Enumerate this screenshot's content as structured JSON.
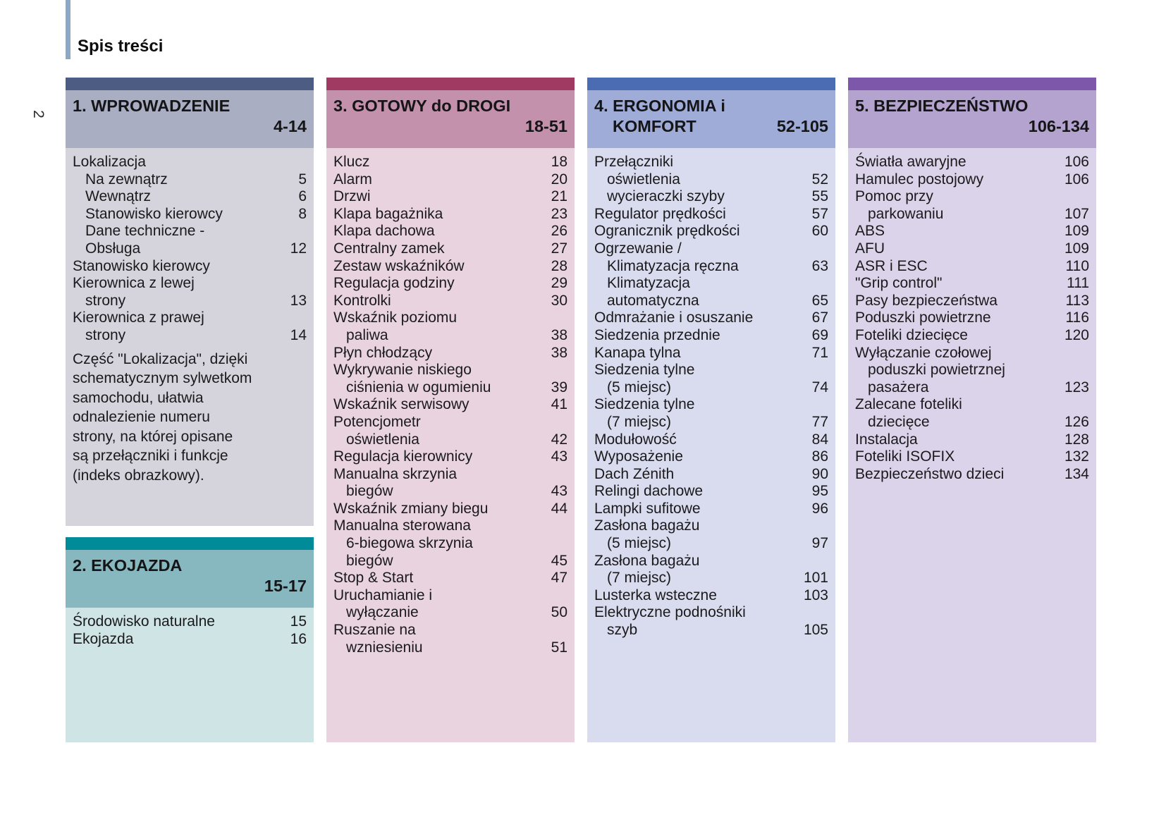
{
  "page_number": "2",
  "title": "Spis treści",
  "accent_bar_color": "#8da8c7",
  "columns": [
    {
      "id": "wprowadzenie",
      "header": {
        "line1": "1. WPROWADZENIE",
        "line2": "",
        "range": "4-14"
      },
      "colors": {
        "bar": "#4d5c82",
        "header": "#a9aec2",
        "content": "#d5d4dd"
      },
      "items": [
        {
          "label": "Lokalizacja"
        },
        {
          "label": "Na zewnątrz",
          "page": "5",
          "indent": 1
        },
        {
          "label": "Wewnątrz",
          "page": "6",
          "indent": 1
        },
        {
          "label": "Stanowisko kierowcy",
          "page": "8",
          "indent": 1
        },
        {
          "label": "Dane techniczne -",
          "indent": 1
        },
        {
          "label": "Obsługa",
          "page": "12",
          "indent": 1
        },
        {
          "label": "Stanowisko kierowcy"
        },
        {
          "label": "Kierownica z lewej"
        },
        {
          "label": "strony",
          "page": "13",
          "indent": 1
        },
        {
          "label": "Kierownica z prawej"
        },
        {
          "label": "strony",
          "page": "14",
          "indent": 1
        }
      ],
      "note": [
        "Część \"Lokalizacja\", dzięki",
        "schematycznym sylwetkom",
        "samochodu, ułatwia",
        "odnalezienie numeru",
        "strony, na której opisane",
        "są przełączniki i funkcje",
        "(indeks obrazkowy)."
      ]
    },
    {
      "id": "ekojazda",
      "header": {
        "line1": "2. EKOJAZDA",
        "line2": "",
        "range": "15-17"
      },
      "colors": {
        "bar": "#008b99",
        "header": "#87b7bf",
        "content": "#cfe4e5"
      },
      "items": [
        {
          "label": "Środowisko naturalne",
          "page": "15"
        },
        {
          "label": "Ekojazda",
          "page": "16"
        }
      ]
    },
    {
      "id": "gotowy",
      "header": {
        "line1": "3. GOTOWY do DROGI",
        "line2": "",
        "range": "18-51"
      },
      "colors": {
        "bar": "#a03a63",
        "header": "#c391ac",
        "content": "#e9d3df"
      },
      "items": [
        {
          "label": "Klucz",
          "page": "18"
        },
        {
          "label": "Alarm",
          "page": "20"
        },
        {
          "label": "Drzwi",
          "page": "21"
        },
        {
          "label": "Klapa bagażnika",
          "page": "23"
        },
        {
          "label": "Klapa dachowa",
          "page": "26"
        },
        {
          "label": "Centralny zamek",
          "page": "27"
        },
        {
          "label": "Zestaw wskaźników",
          "page": "28"
        },
        {
          "label": "Regulacja godziny",
          "page": "29"
        },
        {
          "label": "Kontrolki",
          "page": "30"
        },
        {
          "label": "Wskaźnik poziomu"
        },
        {
          "label": "paliwa",
          "page": "38",
          "indent": 1
        },
        {
          "label": "Płyn chłodzący",
          "page": "38"
        },
        {
          "label": "Wykrywanie niskiego"
        },
        {
          "label": "ciśnienia w ogumieniu",
          "page": "39",
          "indent": 1
        },
        {
          "label": "Wskaźnik serwisowy",
          "page": "41"
        },
        {
          "label": "Potencjometr"
        },
        {
          "label": "oświetlenia",
          "page": "42",
          "indent": 1
        },
        {
          "label": "Regulacja kierownicy",
          "page": "43"
        },
        {
          "label": "Manualna skrzynia"
        },
        {
          "label": "biegów",
          "page": "43",
          "indent": 1
        },
        {
          "label": "Wskaźnik zmiany biegu",
          "page": "44"
        },
        {
          "label": "Manualna sterowana"
        },
        {
          "label": "6-biegowa skrzynia",
          "indent": 1
        },
        {
          "label": "biegów",
          "page": "45",
          "indent": 1
        },
        {
          "label": "Stop & Start",
          "page": "47"
        },
        {
          "label": "Uruchamianie i"
        },
        {
          "label": "wyłączanie",
          "page": "50",
          "indent": 1
        },
        {
          "label": "Ruszanie na"
        },
        {
          "label": "wzniesieniu",
          "page": "51",
          "indent": 1
        }
      ]
    },
    {
      "id": "ergonomia",
      "header": {
        "line1": "4. ERGONOMIA i",
        "line2": "KOMFORT",
        "range": "52-105"
      },
      "colors": {
        "bar": "#4b6cb2",
        "header": "#9eacd7",
        "content": "#d9dcee"
      },
      "items": [
        {
          "label": "Przełączniki"
        },
        {
          "label": "oświetlenia",
          "page": "52",
          "indent": 1
        },
        {
          "label": "wycieraczki szyby",
          "page": "55",
          "indent": 1
        },
        {
          "label": "Regulator prędkości",
          "page": "57"
        },
        {
          "label": "Ogranicznik prędkości",
          "page": "60"
        },
        {
          "label": "Ogrzewanie /"
        },
        {
          "label": "Klimatyzacja ręczna",
          "page": "63",
          "indent": 1
        },
        {
          "label": "Klimatyzacja",
          "indent": 1
        },
        {
          "label": "automatyczna",
          "page": "65",
          "indent": 1
        },
        {
          "label": "Odmrażanie i osuszanie",
          "page": "67"
        },
        {
          "label": "Siedzenia przednie",
          "page": "69"
        },
        {
          "label": "Kanapa tylna",
          "page": "71"
        },
        {
          "label": "Siedzenia tylne"
        },
        {
          "label": "(5 miejsc)",
          "page": "74",
          "indent": 1
        },
        {
          "label": "Siedzenia tylne"
        },
        {
          "label": "(7 miejsc)",
          "page": "77",
          "indent": 1
        },
        {
          "label": "Modułowość",
          "page": "84"
        },
        {
          "label": "Wyposażenie",
          "page": "86"
        },
        {
          "label": "Dach Zénith",
          "page": "90"
        },
        {
          "label": "Relingi dachowe",
          "page": "95"
        },
        {
          "label": "Lampki sufitowe",
          "page": "96"
        },
        {
          "label": "Zasłona bagażu"
        },
        {
          "label": "(5 miejsc)",
          "page": "97",
          "indent": 1
        },
        {
          "label": "Zasłona bagażu"
        },
        {
          "label": "(7 miejsc)",
          "page": "101",
          "indent": 1
        },
        {
          "label": "Lusterka wsteczne",
          "page": "103"
        },
        {
          "label": "Elektryczne podnośniki"
        },
        {
          "label": "szyb",
          "page": "105",
          "indent": 1
        }
      ]
    },
    {
      "id": "bezpieczenstwo",
      "header": {
        "line1": "5. BEZPIECZEŃSTWO",
        "line2": "",
        "range": "106-134"
      },
      "colors": {
        "bar": "#7c57aa",
        "header": "#b3a3ce",
        "content": "#dbd3e9"
      },
      "items": [
        {
          "label": "Światła awaryjne",
          "page": "106"
        },
        {
          "label": "Hamulec postojowy",
          "page": "106"
        },
        {
          "label": "Pomoc przy"
        },
        {
          "label": "parkowaniu",
          "page": "107",
          "indent": 1
        },
        {
          "label": "ABS",
          "page": "109"
        },
        {
          "label": "AFU",
          "page": "109"
        },
        {
          "label": "ASR i ESC",
          "page": "110"
        },
        {
          "label": "\"Grip control\"",
          "page": "111"
        },
        {
          "label": "Pasy bezpieczeństwa",
          "page": "113"
        },
        {
          "label": "Poduszki powietrzne",
          "page": "116"
        },
        {
          "label": "Foteliki dziecięce",
          "page": "120"
        },
        {
          "label": "Wyłączanie czołowej"
        },
        {
          "label": "poduszki powietrznej",
          "indent": 1
        },
        {
          "label": "pasażera",
          "page": "123",
          "indent": 1
        },
        {
          "label": "Zalecane foteliki"
        },
        {
          "label": "dziecięce",
          "page": "126",
          "indent": 1
        },
        {
          "label": "Instalacja",
          "page": "128"
        },
        {
          "label": "Foteliki ISOFIX",
          "page": "132"
        },
        {
          "label": "Bezpieczeństwo dzieci",
          "page": "134"
        }
      ]
    }
  ]
}
